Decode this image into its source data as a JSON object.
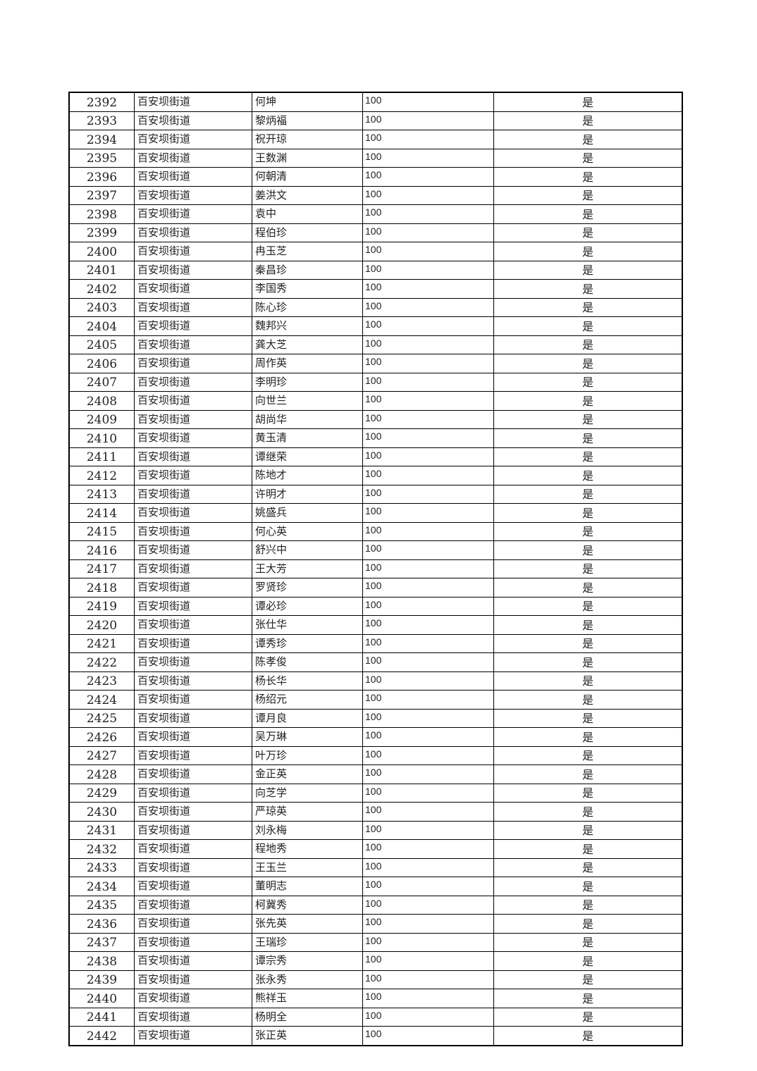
{
  "table": {
    "rows": [
      {
        "no": "2392",
        "street": "百安坝街道",
        "name": "何坤",
        "amount": "100",
        "flag": "是"
      },
      {
        "no": "2393",
        "street": "百安坝街道",
        "name": "黎炳福",
        "amount": "100",
        "flag": "是"
      },
      {
        "no": "2394",
        "street": "百安坝街道",
        "name": "祝开琼",
        "amount": "100",
        "flag": "是"
      },
      {
        "no": "2395",
        "street": "百安坝街道",
        "name": "王数渊",
        "amount": "100",
        "flag": "是"
      },
      {
        "no": "2396",
        "street": "百安坝街道",
        "name": "何朝清",
        "amount": "100",
        "flag": "是"
      },
      {
        "no": "2397",
        "street": "百安坝街道",
        "name": "姜洪文",
        "amount": "100",
        "flag": "是"
      },
      {
        "no": "2398",
        "street": "百安坝街道",
        "name": "袁中",
        "amount": "100",
        "flag": "是"
      },
      {
        "no": "2399",
        "street": "百安坝街道",
        "name": "程伯珍",
        "amount": "100",
        "flag": "是"
      },
      {
        "no": "2400",
        "street": "百安坝街道",
        "name": "冉玉芝",
        "amount": "100",
        "flag": "是"
      },
      {
        "no": "2401",
        "street": "百安坝街道",
        "name": "秦昌珍",
        "amount": "100",
        "flag": "是"
      },
      {
        "no": "2402",
        "street": "百安坝街道",
        "name": "李国秀",
        "amount": "100",
        "flag": "是"
      },
      {
        "no": "2403",
        "street": "百安坝街道",
        "name": "陈心珍",
        "amount": "100",
        "flag": "是"
      },
      {
        "no": "2404",
        "street": "百安坝街道",
        "name": "魏邦兴",
        "amount": "100",
        "flag": "是"
      },
      {
        "no": "2405",
        "street": "百安坝街道",
        "name": "龚大芝",
        "amount": "100",
        "flag": "是"
      },
      {
        "no": "2406",
        "street": "百安坝街道",
        "name": "周作英",
        "amount": "100",
        "flag": "是"
      },
      {
        "no": "2407",
        "street": "百安坝街道",
        "name": "李明珍",
        "amount": "100",
        "flag": "是"
      },
      {
        "no": "2408",
        "street": "百安坝街道",
        "name": "向世兰",
        "amount": "100",
        "flag": "是"
      },
      {
        "no": "2409",
        "street": "百安坝街道",
        "name": "胡尚华",
        "amount": "100",
        "flag": "是"
      },
      {
        "no": "2410",
        "street": "百安坝街道",
        "name": "黄玉清",
        "amount": "100",
        "flag": "是"
      },
      {
        "no": "2411",
        "street": "百安坝街道",
        "name": "谭继荣",
        "amount": "100",
        "flag": "是"
      },
      {
        "no": "2412",
        "street": "百安坝街道",
        "name": "陈地才",
        "amount": "100",
        "flag": "是"
      },
      {
        "no": "2413",
        "street": "百安坝街道",
        "name": "许明才",
        "amount": "100",
        "flag": "是"
      },
      {
        "no": "2414",
        "street": "百安坝街道",
        "name": "姚盛兵",
        "amount": "100",
        "flag": "是"
      },
      {
        "no": "2415",
        "street": "百安坝街道",
        "name": "何心英",
        "amount": "100",
        "flag": "是"
      },
      {
        "no": "2416",
        "street": "百安坝街道",
        "name": "舒兴中",
        "amount": "100",
        "flag": "是"
      },
      {
        "no": "2417",
        "street": "百安坝街道",
        "name": "王大芳",
        "amount": "100",
        "flag": "是"
      },
      {
        "no": "2418",
        "street": "百安坝街道",
        "name": "罗贤珍",
        "amount": "100",
        "flag": "是"
      },
      {
        "no": "2419",
        "street": "百安坝街道",
        "name": "谭必珍",
        "amount": "100",
        "flag": "是"
      },
      {
        "no": "2420",
        "street": "百安坝街道",
        "name": "张仕华",
        "amount": "100",
        "flag": "是"
      },
      {
        "no": "2421",
        "street": "百安坝街道",
        "name": "谭秀珍",
        "amount": "100",
        "flag": "是"
      },
      {
        "no": "2422",
        "street": "百安坝街道",
        "name": "陈孝俊",
        "amount": "100",
        "flag": "是"
      },
      {
        "no": "2423",
        "street": "百安坝街道",
        "name": "杨长华",
        "amount": "100",
        "flag": "是"
      },
      {
        "no": "2424",
        "street": "百安坝街道",
        "name": "杨绍元",
        "amount": "100",
        "flag": "是"
      },
      {
        "no": "2425",
        "street": "百安坝街道",
        "name": "谭月良",
        "amount": "100",
        "flag": "是"
      },
      {
        "no": "2426",
        "street": "百安坝街道",
        "name": "吴万琳",
        "amount": "100",
        "flag": "是"
      },
      {
        "no": "2427",
        "street": "百安坝街道",
        "name": "叶万珍",
        "amount": "100",
        "flag": "是"
      },
      {
        "no": "2428",
        "street": "百安坝街道",
        "name": "金正英",
        "amount": "100",
        "flag": "是"
      },
      {
        "no": "2429",
        "street": "百安坝街道",
        "name": "向芝学",
        "amount": "100",
        "flag": "是"
      },
      {
        "no": "2430",
        "street": "百安坝街道",
        "name": "严琼英",
        "amount": "100",
        "flag": "是"
      },
      {
        "no": "2431",
        "street": "百安坝街道",
        "name": "刘永梅",
        "amount": "100",
        "flag": "是"
      },
      {
        "no": "2432",
        "street": "百安坝街道",
        "name": "程地秀",
        "amount": "100",
        "flag": "是"
      },
      {
        "no": "2433",
        "street": "百安坝街道",
        "name": "王玉兰",
        "amount": "100",
        "flag": "是"
      },
      {
        "no": "2434",
        "street": "百安坝街道",
        "name": "董明志",
        "amount": "100",
        "flag": "是"
      },
      {
        "no": "2435",
        "street": "百安坝街道",
        "name": "柯冀秀",
        "amount": "100",
        "flag": "是"
      },
      {
        "no": "2436",
        "street": "百安坝街道",
        "name": "张先英",
        "amount": "100",
        "flag": "是"
      },
      {
        "no": "2437",
        "street": "百安坝街道",
        "name": "王瑞珍",
        "amount": "100",
        "flag": "是"
      },
      {
        "no": "2438",
        "street": "百安坝街道",
        "name": "谭宗秀",
        "amount": "100",
        "flag": "是"
      },
      {
        "no": "2439",
        "street": "百安坝街道",
        "name": "张永秀",
        "amount": "100",
        "flag": "是"
      },
      {
        "no": "2440",
        "street": "百安坝街道",
        "name": "熊祥玉",
        "amount": "100",
        "flag": "是"
      },
      {
        "no": "2441",
        "street": "百安坝街道",
        "name": "杨明全",
        "amount": "100",
        "flag": "是"
      },
      {
        "no": "2442",
        "street": "百安坝街道",
        "name": "张正英",
        "amount": "100",
        "flag": "是"
      }
    ]
  }
}
